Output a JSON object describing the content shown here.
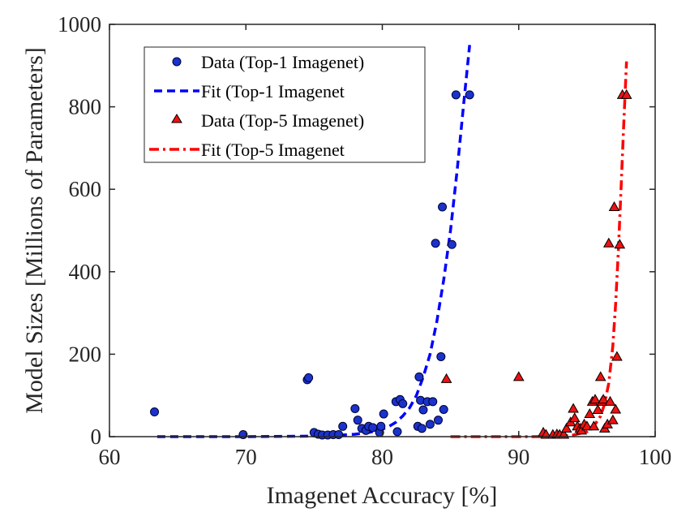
{
  "chart_data": {
    "type": "scatter",
    "title": "",
    "xlabel": "Imagenet Accuracy [%]",
    "ylabel": "Model Sizes [Millions of Parameters]",
    "xlim": [
      60,
      100
    ],
    "ylim": [
      0,
      1000
    ],
    "xticks": [
      60,
      70,
      80,
      90,
      100
    ],
    "yticks": [
      0,
      200,
      400,
      600,
      800,
      1000
    ],
    "grid": false,
    "legend_position": "top-left",
    "colors": {
      "top1_marker": "#1a33cc",
      "top1_fit": "#0000ff",
      "top5_marker": "#ee1111",
      "top5_fit": "#ff0000",
      "axis": "#262626"
    },
    "series": [
      {
        "name": "Data (Top-1 Imagenet)",
        "kind": "scatter",
        "marker": "circle",
        "points": [
          [
            63.3,
            60
          ],
          [
            69.8,
            5
          ],
          [
            74.5,
            138
          ],
          [
            74.6,
            143
          ],
          [
            75.0,
            10
          ],
          [
            75.3,
            6
          ],
          [
            75.6,
            4
          ],
          [
            76.0,
            4
          ],
          [
            76.4,
            5
          ],
          [
            76.8,
            5
          ],
          [
            77.1,
            25
          ],
          [
            78.0,
            68
          ],
          [
            78.2,
            40
          ],
          [
            78.5,
            20
          ],
          [
            78.8,
            15
          ],
          [
            79.0,
            25
          ],
          [
            79.3,
            22
          ],
          [
            79.8,
            10
          ],
          [
            79.9,
            25
          ],
          [
            80.1,
            55
          ],
          [
            81.0,
            85
          ],
          [
            81.3,
            90
          ],
          [
            81.5,
            80
          ],
          [
            81.1,
            12
          ],
          [
            82.6,
            25
          ],
          [
            82.7,
            145
          ],
          [
            82.8,
            88
          ],
          [
            82.9,
            20
          ],
          [
            83.0,
            65
          ],
          [
            83.3,
            85
          ],
          [
            83.5,
            30
          ],
          [
            83.7,
            85
          ],
          [
            83.9,
            469
          ],
          [
            84.1,
            40
          ],
          [
            84.3,
            194
          ],
          [
            84.4,
            557
          ],
          [
            84.5,
            66
          ],
          [
            85.1,
            466
          ],
          [
            85.4,
            829
          ],
          [
            86.4,
            829
          ]
        ]
      },
      {
        "name": "Fit (Top-1 Imagenet",
        "kind": "line",
        "style": "dashed",
        "x": [
          63.5,
          66,
          70,
          74,
          76,
          78,
          79,
          80,
          80.5,
          81,
          81.5,
          82,
          82.5,
          83,
          83.5,
          84,
          84.5,
          85,
          85.5,
          86,
          86.4
        ],
        "y": [
          0,
          0,
          0,
          1,
          2,
          6,
          10,
          18,
          25,
          35,
          50,
          70,
          100,
          145,
          200,
          280,
          380,
          500,
          650,
          820,
          950
        ]
      },
      {
        "name": "Data (Top-5 Imagenet)",
        "kind": "scatter",
        "marker": "triangle",
        "points": [
          [
            84.7,
            140
          ],
          [
            90.0,
            145
          ],
          [
            91.8,
            10
          ],
          [
            92.0,
            5
          ],
          [
            92.5,
            5
          ],
          [
            92.8,
            6
          ],
          [
            93.0,
            5
          ],
          [
            93.3,
            5
          ],
          [
            93.5,
            20
          ],
          [
            93.8,
            35
          ],
          [
            94.0,
            68
          ],
          [
            94.1,
            45
          ],
          [
            94.3,
            25
          ],
          [
            94.5,
            20
          ],
          [
            94.6,
            15
          ],
          [
            94.8,
            30
          ],
          [
            95.0,
            25
          ],
          [
            95.2,
            55
          ],
          [
            95.4,
            85
          ],
          [
            95.5,
            25
          ],
          [
            95.6,
            90
          ],
          [
            95.8,
            65
          ],
          [
            96.0,
            145
          ],
          [
            96.1,
            85
          ],
          [
            96.2,
            90
          ],
          [
            96.3,
            20
          ],
          [
            96.5,
            30
          ],
          [
            96.6,
            469
          ],
          [
            96.7,
            85
          ],
          [
            96.9,
            40
          ],
          [
            97.0,
            557
          ],
          [
            97.1,
            66
          ],
          [
            97.2,
            194
          ],
          [
            97.4,
            466
          ],
          [
            97.6,
            829
          ],
          [
            97.9,
            829
          ]
        ]
      },
      {
        "name": "Fit (Top-5 Imagenet",
        "kind": "line",
        "style": "dashdot",
        "x": [
          85,
          88,
          91,
          93,
          94,
          95,
          95.5,
          96,
          96.3,
          96.6,
          96.9,
          97.1,
          97.3,
          97.5,
          97.7,
          97.9
        ],
        "y": [
          0,
          0,
          0,
          1,
          4,
          12,
          25,
          50,
          80,
          130,
          220,
          320,
          450,
          600,
          760,
          910
        ]
      }
    ]
  }
}
